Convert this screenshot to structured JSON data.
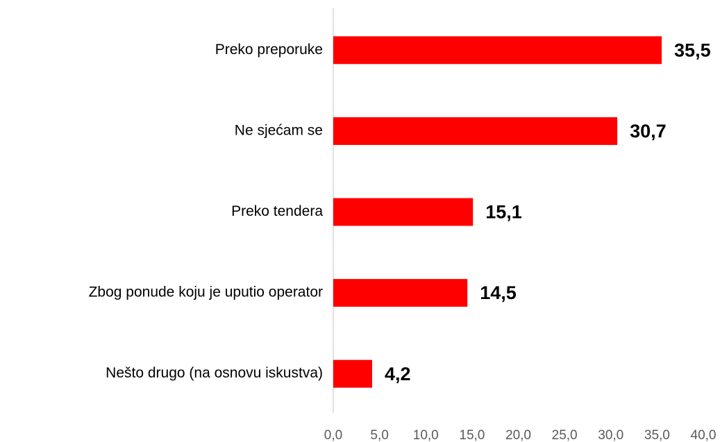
{
  "chart_data": {
    "type": "bar",
    "orientation": "horizontal",
    "categories": [
      "Preko preporuke",
      "Ne sjećam se",
      "Preko tendera",
      "Zbog ponude koju je uputio operator",
      "Nešto drugo (na osnovu iskustva)"
    ],
    "values": [
      35.5,
      30.7,
      15.1,
      14.5,
      4.2
    ],
    "value_labels": [
      "35,5",
      "30,7",
      "15,1",
      "14,5",
      "4,2"
    ],
    "color": "#ff0000",
    "xlim": [
      0,
      40
    ],
    "xticks": [
      {
        "value": 0,
        "label": "0,0"
      },
      {
        "value": 5,
        "label": "5,0"
      },
      {
        "value": 10,
        "label": "10,0"
      },
      {
        "value": 15,
        "label": "15,0"
      },
      {
        "value": 20,
        "label": "20,0"
      },
      {
        "value": 25,
        "label": "25,0"
      },
      {
        "value": 30,
        "label": "30,0"
      },
      {
        "value": 35,
        "label": "35,0"
      },
      {
        "value": 40,
        "label": "40,0"
      }
    ],
    "grid": false
  }
}
